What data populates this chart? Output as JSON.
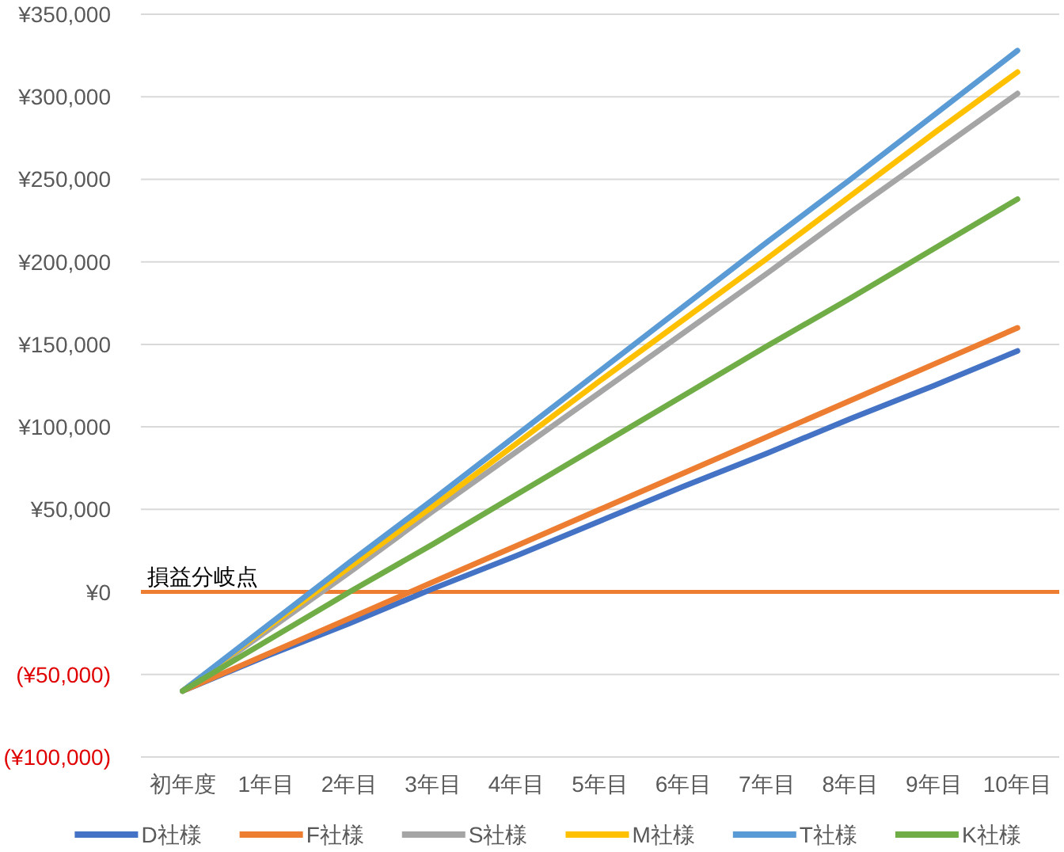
{
  "chart_data": {
    "type": "line",
    "categories": [
      "初年度",
      "1年目",
      "2年目",
      "3年目",
      "4年目",
      "5年目",
      "6年目",
      "7年目",
      "8年目",
      "9年目",
      "10年目"
    ],
    "series": [
      {
        "name": "D社様",
        "color": "#4472c4",
        "values": [
          -60000,
          -39000,
          -19000,
          2000,
          22000,
          43000,
          64000,
          84000,
          105000,
          125000,
          146000
        ]
      },
      {
        "name": "F社様",
        "color": "#ed7d31",
        "values": [
          -60000,
          -38000,
          -16000,
          6000,
          28000,
          50000,
          72000,
          94000,
          116000,
          138000,
          160000
        ]
      },
      {
        "name": "S社様",
        "color": "#a5a5a5",
        "values": [
          -60000,
          -24000,
          12000,
          49000,
          85000,
          121000,
          157000,
          193000,
          230000,
          266000,
          302000
        ]
      },
      {
        "name": "M社様",
        "color": "#ffc000",
        "values": [
          -60000,
          -22000,
          15000,
          52000,
          90000,
          128000,
          165000,
          202000,
          240000,
          278000,
          315000
        ]
      },
      {
        "name": "T社様",
        "color": "#5b9bd5",
        "values": [
          -60000,
          -21000,
          18000,
          56000,
          95000,
          134000,
          173000,
          212000,
          250000,
          289000,
          328000
        ]
      },
      {
        "name": "K社様",
        "color": "#70ad47",
        "values": [
          -60000,
          -30000,
          0,
          29000,
          59000,
          89000,
          119000,
          149000,
          178000,
          208000,
          238000
        ]
      }
    ],
    "ylim": [
      -100000,
      350000
    ],
    "yticks": [
      {
        "value": -100000,
        "label": "(¥100,000)"
      },
      {
        "value": -50000,
        "label": "(¥50,000)"
      },
      {
        "value": 0,
        "label": "¥0"
      },
      {
        "value": 50000,
        "label": "¥50,000"
      },
      {
        "value": 100000,
        "label": "¥100,000"
      },
      {
        "value": 150000,
        "label": "¥150,000"
      },
      {
        "value": 200000,
        "label": "¥200,000"
      },
      {
        "value": 250000,
        "label": "¥250,000"
      },
      {
        "value": 300000,
        "label": "¥300,000"
      },
      {
        "value": 350000,
        "label": "¥350,000"
      }
    ],
    "ref_lines": [
      {
        "axis": "y",
        "value": 0,
        "label": "損益分岐点",
        "color": "#ed7d31"
      }
    ],
    "grid": "y",
    "legend": "bottom",
    "marker": "none",
    "line_style": "solid"
  }
}
